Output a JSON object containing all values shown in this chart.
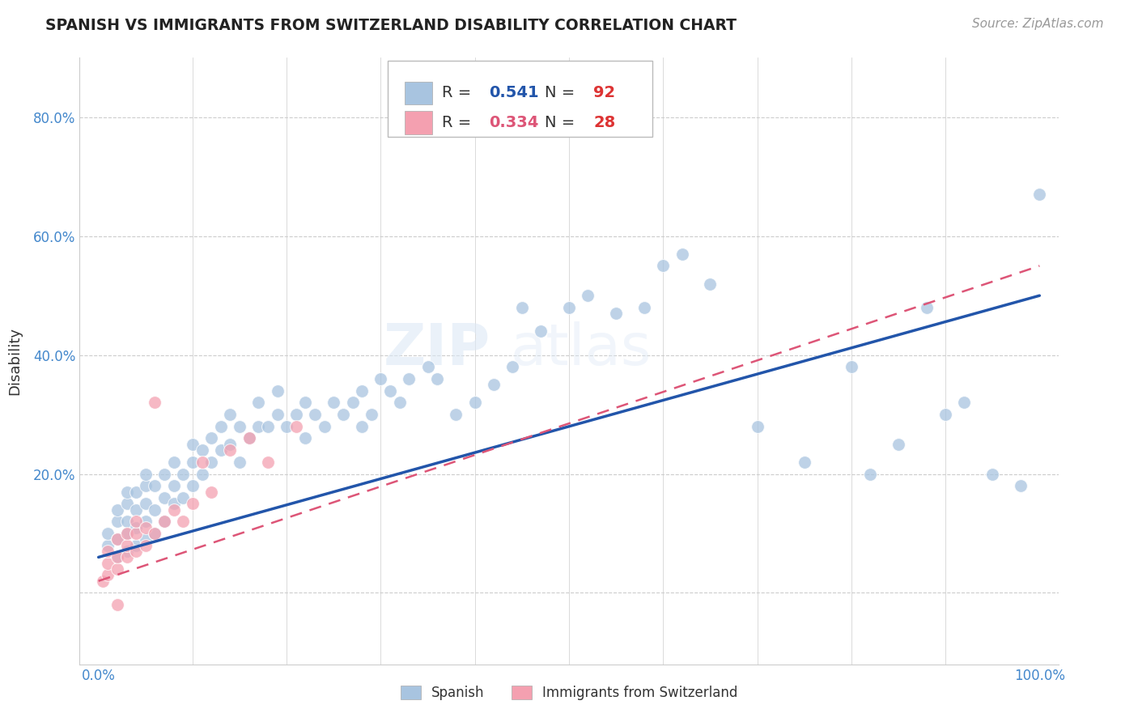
{
  "title": "SPANISH VS IMMIGRANTS FROM SWITZERLAND DISABILITY CORRELATION CHART",
  "source_text": "Source: ZipAtlas.com",
  "ylabel": "Disability",
  "xlabel": "",
  "xlim": [
    -0.02,
    1.02
  ],
  "ylim": [
    -0.12,
    0.9
  ],
  "xticks": [
    0.0,
    0.1,
    0.2,
    0.3,
    0.4,
    0.5,
    0.6,
    0.7,
    0.8,
    0.9,
    1.0
  ],
  "xticklabels": [
    "0.0%",
    "",
    "",
    "",
    "",
    "",
    "",
    "",
    "",
    "",
    "100.0%"
  ],
  "yticks": [
    0.0,
    0.2,
    0.4,
    0.6,
    0.8
  ],
  "yticklabels": [
    "",
    "20.0%",
    "40.0%",
    "60.0%",
    "80.0%"
  ],
  "blue_R": 0.541,
  "blue_N": 92,
  "pink_R": 0.334,
  "pink_N": 28,
  "blue_color": "#a8c4e0",
  "pink_color": "#f4a0b0",
  "blue_line_color": "#2255aa",
  "pink_line_color": "#dd5577",
  "watermark_zip": "ZIP",
  "watermark_atlas": "atlas",
  "legend_R_color": "#2255aa",
  "legend_N_color": "#dd3333",
  "blue_scatter_x": [
    0.01,
    0.01,
    0.02,
    0.02,
    0.02,
    0.02,
    0.03,
    0.03,
    0.03,
    0.03,
    0.03,
    0.04,
    0.04,
    0.04,
    0.04,
    0.05,
    0.05,
    0.05,
    0.05,
    0.05,
    0.06,
    0.06,
    0.06,
    0.07,
    0.07,
    0.07,
    0.08,
    0.08,
    0.08,
    0.09,
    0.09,
    0.1,
    0.1,
    0.1,
    0.11,
    0.11,
    0.12,
    0.12,
    0.13,
    0.13,
    0.14,
    0.14,
    0.15,
    0.15,
    0.16,
    0.17,
    0.17,
    0.18,
    0.19,
    0.19,
    0.2,
    0.21,
    0.22,
    0.22,
    0.23,
    0.24,
    0.25,
    0.26,
    0.27,
    0.28,
    0.28,
    0.29,
    0.3,
    0.31,
    0.32,
    0.33,
    0.35,
    0.36,
    0.38,
    0.4,
    0.42,
    0.44,
    0.45,
    0.47,
    0.5,
    0.52,
    0.55,
    0.58,
    0.6,
    0.62,
    0.65,
    0.7,
    0.75,
    0.8,
    0.82,
    0.85,
    0.88,
    0.9,
    0.92,
    0.95,
    0.98,
    1.0
  ],
  "blue_scatter_y": [
    0.08,
    0.1,
    0.06,
    0.09,
    0.12,
    0.14,
    0.07,
    0.1,
    0.12,
    0.15,
    0.17,
    0.08,
    0.11,
    0.14,
    0.17,
    0.09,
    0.12,
    0.15,
    0.18,
    0.2,
    0.1,
    0.14,
    0.18,
    0.12,
    0.16,
    0.2,
    0.15,
    0.18,
    0.22,
    0.16,
    0.2,
    0.18,
    0.22,
    0.25,
    0.2,
    0.24,
    0.22,
    0.26,
    0.24,
    0.28,
    0.25,
    0.3,
    0.22,
    0.28,
    0.26,
    0.28,
    0.32,
    0.28,
    0.3,
    0.34,
    0.28,
    0.3,
    0.32,
    0.26,
    0.3,
    0.28,
    0.32,
    0.3,
    0.32,
    0.28,
    0.34,
    0.3,
    0.36,
    0.34,
    0.32,
    0.36,
    0.38,
    0.36,
    0.3,
    0.32,
    0.35,
    0.38,
    0.48,
    0.44,
    0.48,
    0.5,
    0.47,
    0.48,
    0.55,
    0.57,
    0.52,
    0.28,
    0.22,
    0.38,
    0.2,
    0.25,
    0.48,
    0.3,
    0.32,
    0.2,
    0.18,
    0.67
  ],
  "pink_scatter_x": [
    0.005,
    0.01,
    0.01,
    0.01,
    0.02,
    0.02,
    0.02,
    0.02,
    0.03,
    0.03,
    0.03,
    0.04,
    0.04,
    0.04,
    0.05,
    0.05,
    0.06,
    0.06,
    0.07,
    0.08,
    0.09,
    0.1,
    0.11,
    0.12,
    0.14,
    0.16,
    0.18,
    0.21
  ],
  "pink_scatter_y": [
    0.02,
    0.03,
    0.05,
    0.07,
    0.04,
    0.06,
    0.09,
    -0.02,
    0.06,
    0.08,
    0.1,
    0.07,
    0.1,
    0.12,
    0.08,
    0.11,
    0.1,
    0.32,
    0.12,
    0.14,
    0.12,
    0.15,
    0.22,
    0.17,
    0.24,
    0.26,
    0.22,
    0.28
  ],
  "blue_line_x": [
    0.0,
    1.0
  ],
  "blue_line_y": [
    0.06,
    0.5
  ],
  "pink_line_x": [
    0.0,
    1.0
  ],
  "pink_line_y": [
    0.02,
    0.55
  ]
}
